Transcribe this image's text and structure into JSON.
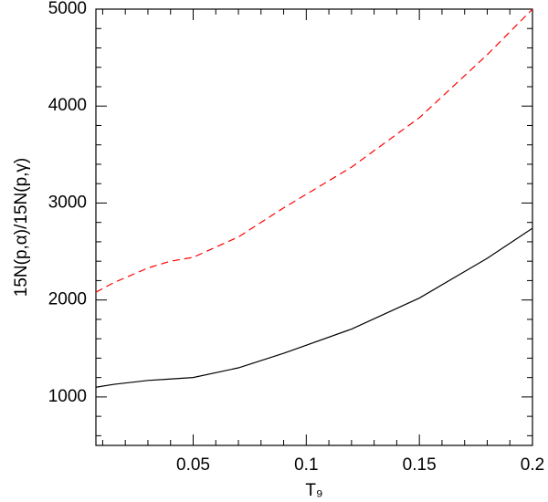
{
  "chart_data": {
    "type": "line",
    "xlabel": "T₉",
    "ylabel": "15N(p,α)/15N(p,γ)",
    "x": [
      0.007,
      0.015,
      0.03,
      0.04,
      0.05,
      0.07,
      0.09,
      0.12,
      0.15,
      0.18,
      0.2
    ],
    "series": [
      {
        "color": "#000000",
        "dash": "none",
        "values": [
          1100,
          1130,
          1170,
          1185,
          1200,
          1300,
          1450,
          1700,
          2020,
          2430,
          2740
        ]
      },
      {
        "color": "#ff0000",
        "dash": "dashed",
        "values": [
          2080,
          2180,
          2330,
          2400,
          2440,
          2650,
          2950,
          3370,
          3880,
          4530,
          5000
        ]
      }
    ],
    "xlim": [
      0.007,
      0.2
    ],
    "ylim": [
      500,
      5000
    ],
    "xticks": [
      0.05,
      0.1,
      0.15,
      0.2
    ],
    "yticks": [
      1000,
      2000,
      3000,
      4000,
      5000
    ],
    "xminor_ticks": [
      0.01,
      0.02,
      0.03,
      0.04,
      0.06,
      0.07,
      0.08,
      0.09,
      0.11,
      0.12,
      0.13,
      0.14,
      0.16,
      0.17,
      0.18,
      0.19
    ],
    "yminor_ticks": [
      600,
      800,
      1200,
      1400,
      1600,
      1800,
      2200,
      2400,
      2600,
      2800,
      3200,
      3400,
      3600,
      3800,
      4200,
      4400,
      4600,
      4800
    ]
  }
}
